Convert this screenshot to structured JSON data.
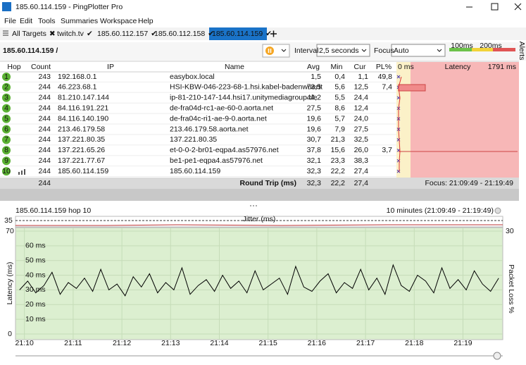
{
  "window": {
    "title": "185.60.114.159 - PingPlotter Pro"
  },
  "menu": [
    "File",
    "Edit",
    "Tools",
    "Summaries",
    "Workspace",
    "Help"
  ],
  "tabs": [
    "All Targets",
    "twitch.tv",
    "185.60.112.157",
    "185.60.112.158",
    "185.60.114.159"
  ],
  "toolbar": {
    "target": "185.60.114.159 /",
    "interval_label": "Interval",
    "interval": "2,5 seconds",
    "focus_label": "Focus",
    "focus": "Auto",
    "scale": [
      "100ms",
      "200ms"
    ],
    "side_tab": "Alerts"
  },
  "table": {
    "headers": [
      "Hop",
      "Count",
      "IP",
      "Name",
      "Avg",
      "Min",
      "Cur",
      "PL%"
    ],
    "latency_headers": [
      "0 ms",
      "Latency",
      "1791 ms"
    ],
    "rows": [
      [
        "1",
        "243",
        "192.168.0.1",
        "easybox.local",
        "1,5",
        "0,4",
        "1,1",
        "49,8"
      ],
      [
        "2",
        "244",
        "46.223.68.1",
        "HSI-KBW-046-223-68-1.hsi.kabel-badenwuertt",
        "73,5",
        "5,6",
        "12,5",
        "7,4"
      ],
      [
        "3",
        "244",
        "81.210.147.144",
        "ip-81-210-147-144.hsi17.unitymediagroup.de",
        "44,2",
        "5,5",
        "24,4"
      ],
      [
        "4",
        "244",
        "84.116.191.221",
        "de-fra04d-rc1-ae-60-0.aorta.net",
        "27,5",
        "8,6",
        "12,4"
      ],
      [
        "5",
        "244",
        "84.116.140.190",
        "de-fra04c-ri1-ae-9-0.aorta.net",
        "19,6",
        "5,7",
        "24,0"
      ],
      [
        "6",
        "244",
        "213.46.179.58",
        "213.46.179.58.aorta.net",
        "19,6",
        "7,9",
        "27,5"
      ],
      [
        "7",
        "244",
        "137.221.80.35",
        "137.221.80.35",
        "30,7",
        "21,3",
        "32,5"
      ],
      [
        "8",
        "244",
        "137.221.65.26",
        "et-0-0-2-br01-eqpa4.as57976.net",
        "37,8",
        "15,6",
        "26,0",
        "3,7"
      ],
      [
        "9",
        "244",
        "137.221.77.67",
        "be1-pe1-eqpa4.as57976.net",
        "32,1",
        "23,3",
        "38,3"
      ],
      [
        "10",
        "244",
        "185.60.114.159",
        "185.60.114.159",
        "32,3",
        "22,2",
        "27,4"
      ]
    ]
  },
  "summary": {
    "count": "244",
    "label": "Round Trip (ms)",
    "avg": "32,3",
    "min": "22,2",
    "cur": "27,4",
    "focus": "Focus: 21:09:49 - 21:19:49"
  },
  "graph": {
    "title": "185.60.114.159 hop 10",
    "range": "10 minutes (21:09:49 - 21:19:49)",
    "jitter_label": "Jitter (ms)",
    "jitter_ticks": [
      35
    ]
  },
  "chart_data": {
    "type": "line",
    "ylabel": "Latency (ms)",
    "y2label": "Packet Loss %",
    "color": "#000000",
    "x": [
      5,
      15,
      25,
      35,
      45,
      55,
      65,
      75,
      85,
      95,
      105,
      115,
      125,
      135,
      145,
      155,
      165,
      175,
      185,
      195,
      205,
      215,
      225,
      235,
      245,
      255,
      265,
      275,
      285,
      295,
      305,
      315,
      325,
      335,
      345,
      355,
      365,
      375,
      385,
      395,
      405,
      415,
      425,
      435,
      445,
      455,
      465,
      475,
      485,
      495,
      505,
      515,
      525,
      535,
      545,
      555,
      565,
      575,
      585,
      595
    ],
    "values": [
      30,
      36,
      28,
      33,
      42,
      27,
      35,
      31,
      38,
      29,
      44,
      30,
      34,
      26,
      39,
      32,
      41,
      28,
      35,
      30,
      45,
      27,
      33,
      37,
      29,
      40,
      31,
      36,
      28,
      43,
      30,
      34,
      38,
      27,
      46,
      32,
      29,
      36,
      41,
      28,
      35,
      31,
      44,
      30,
      38,
      27,
      47,
      33,
      29,
      40,
      36,
      28,
      45,
      31,
      37,
      30,
      43,
      34,
      29,
      38
    ],
    "xlim": [
      0,
      600
    ],
    "xticks": [
      {
        "value": 11,
        "label": "21:10"
      },
      {
        "value": 71,
        "label": "21:11"
      },
      {
        "value": 131,
        "label": "21:12"
      },
      {
        "value": 191,
        "label": "21:13"
      },
      {
        "value": 251,
        "label": "21:14"
      },
      {
        "value": 311,
        "label": "21:15"
      },
      {
        "value": 371,
        "label": "21:16"
      },
      {
        "value": 431,
        "label": "21:17"
      },
      {
        "value": 491,
        "label": "21:18"
      },
      {
        "value": 551,
        "label": "21:19"
      }
    ],
    "ylim": [
      0,
      70
    ],
    "yticks": [
      0,
      {
        "value": 10,
        "label": "10 ms"
      },
      {
        "value": 20,
        "label": "20 ms"
      },
      {
        "value": 30,
        "label": "30 ms"
      },
      {
        "value": 40,
        "label": "40 ms"
      },
      {
        "value": 50,
        "label": "50 ms"
      },
      {
        "value": 60,
        "label": "60 ms"
      },
      70
    ],
    "y2lim": [
      0,
      30
    ],
    "y2ticks": [
      30
    ],
    "grid": true
  }
}
